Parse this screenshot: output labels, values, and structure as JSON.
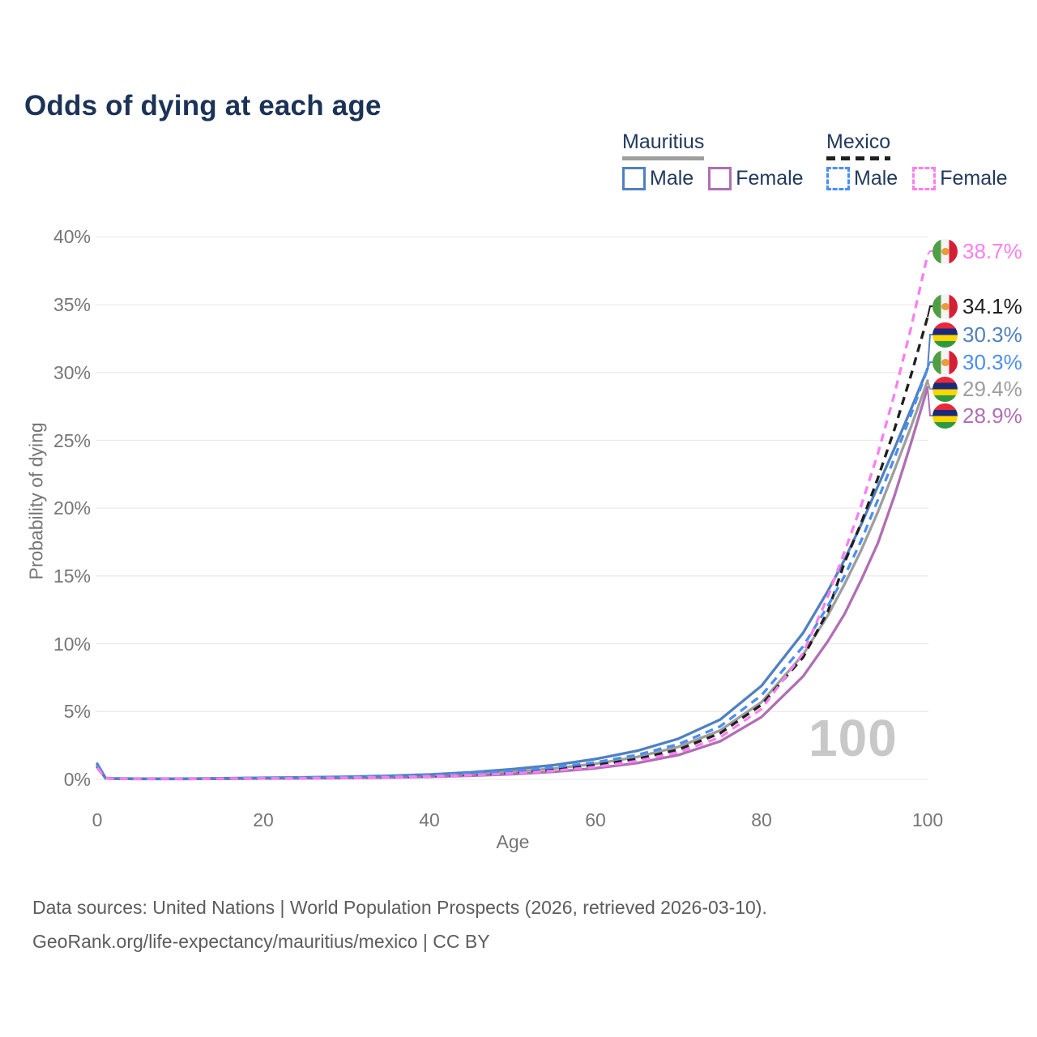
{
  "title": "Odds of dying at each age",
  "legend": {
    "groups": [
      {
        "name": "Mauritius",
        "line_style": "solid",
        "line_color": "#9e9e9e",
        "items": [
          {
            "label": "Male",
            "color": "#5080c0",
            "dashed": false
          },
          {
            "label": "Female",
            "color": "#b06eb4",
            "dashed": false
          }
        ]
      },
      {
        "name": "Mexico",
        "line_style": "dashed",
        "line_color": "#1f1f1f",
        "items": [
          {
            "label": "Male",
            "color": "#4b8ef2",
            "dashed": true
          },
          {
            "label": "Female",
            "color": "#fa7ff0",
            "dashed": true
          }
        ]
      }
    ]
  },
  "y_axis": {
    "label": "Probability of dying",
    "ticks": [
      "40%",
      "35%",
      "30%",
      "25%",
      "20%",
      "15%",
      "10%",
      "5%",
      "0%"
    ]
  },
  "x_axis": {
    "label": "Age",
    "ticks": [
      "0",
      "20",
      "40",
      "60",
      "80",
      "100"
    ]
  },
  "watermark": "100",
  "end_labels": [
    {
      "value": "38.7%",
      "flag": "mexico",
      "series": "mexico-female",
      "color": "#fa7ff0"
    },
    {
      "value": "34.1%",
      "flag": "mexico",
      "series": "mexico-all",
      "color": "#1f1f1f"
    },
    {
      "value": "30.3%",
      "flag": "mauritius",
      "series": "mauritius-male",
      "color": "#5080c0"
    },
    {
      "value": "30.3%",
      "flag": "mexico",
      "series": "mexico-male",
      "color": "#4b8ef2"
    },
    {
      "value": "29.4%",
      "flag": "mauritius",
      "series": "mauritius-all",
      "color": "#9e9e9e"
    },
    {
      "value": "28.9%",
      "flag": "mauritius",
      "series": "mauritius-female",
      "color": "#b06eb4"
    }
  ],
  "footer": {
    "line1": "Data sources: United Nations | World Population Prospects (2026, retrieved 2026-03-10).",
    "line2": "GeoRank.org/life-expectancy/mauritius/mexico | CC BY"
  },
  "chart_data": {
    "type": "line",
    "title": "Odds of dying at each age",
    "xlabel": "Age",
    "ylabel": "Probability of dying",
    "xlim": [
      0,
      100
    ],
    "ylim_percent": [
      0,
      40
    ],
    "x_ticks": [
      0,
      20,
      40,
      60,
      80,
      100
    ],
    "y_ticks_percent": [
      0,
      5,
      10,
      15,
      20,
      25,
      30,
      35,
      40
    ],
    "grid": "horizontal",
    "legend_position": "top-right",
    "x": [
      0,
      1,
      2,
      5,
      10,
      15,
      20,
      25,
      30,
      35,
      40,
      45,
      50,
      55,
      60,
      65,
      70,
      75,
      80,
      85,
      88,
      90,
      92,
      94,
      96,
      98,
      100
    ],
    "series": [
      {
        "id": "mauritius-all",
        "name": "Mauritius (both sexes)",
        "color": "#9e9e9e",
        "dashed": false,
        "end_value_percent": 29.4,
        "values": [
          1.05,
          0.09,
          0.06,
          0.04,
          0.04,
          0.06,
          0.09,
          0.12,
          0.15,
          0.2,
          0.28,
          0.4,
          0.56,
          0.8,
          1.15,
          1.65,
          2.4,
          3.6,
          5.7,
          9.2,
          12.1,
          14.4,
          16.9,
          19.7,
          22.8,
          26.0,
          29.4
        ]
      },
      {
        "id": "mauritius-female",
        "name": "Mauritius Female",
        "color": "#b06eb4",
        "dashed": false,
        "end_value_percent": 28.9,
        "values": [
          0.9,
          0.08,
          0.05,
          0.03,
          0.03,
          0.04,
          0.06,
          0.08,
          0.1,
          0.14,
          0.19,
          0.27,
          0.38,
          0.56,
          0.82,
          1.2,
          1.8,
          2.8,
          4.6,
          7.6,
          10.2,
          12.2,
          14.7,
          17.4,
          20.9,
          24.8,
          28.9
        ]
      },
      {
        "id": "mauritius-male",
        "name": "Mauritius Male",
        "color": "#5080c0",
        "dashed": false,
        "end_value_percent": 30.3,
        "values": [
          1.15,
          0.1,
          0.07,
          0.05,
          0.05,
          0.08,
          0.12,
          0.15,
          0.19,
          0.26,
          0.36,
          0.52,
          0.75,
          1.05,
          1.5,
          2.1,
          3.0,
          4.4,
          6.9,
          10.8,
          13.9,
          16.2,
          18.8,
          21.6,
          24.4,
          27.3,
          30.3
        ]
      },
      {
        "id": "mexico-all",
        "name": "Mexico (both sexes)",
        "color": "#1f1f1f",
        "dashed": true,
        "end_value_percent": 34.1,
        "values": [
          0.95,
          0.08,
          0.05,
          0.04,
          0.04,
          0.05,
          0.08,
          0.11,
          0.14,
          0.18,
          0.25,
          0.36,
          0.51,
          0.73,
          1.05,
          1.5,
          2.2,
          3.4,
          5.5,
          9.0,
          12.4,
          16.0,
          18.9,
          22.2,
          25.8,
          29.8,
          34.1
        ]
      },
      {
        "id": "mexico-male",
        "name": "Mexico Male",
        "color": "#4b8ef2",
        "dashed": true,
        "end_value_percent": 30.3,
        "values": [
          1.0,
          0.09,
          0.06,
          0.04,
          0.04,
          0.07,
          0.11,
          0.14,
          0.17,
          0.23,
          0.31,
          0.44,
          0.62,
          0.88,
          1.25,
          1.8,
          2.6,
          3.9,
          6.2,
          9.8,
          12.8,
          15.0,
          17.6,
          20.6,
          23.7,
          26.9,
          30.3
        ]
      },
      {
        "id": "mexico-female",
        "name": "Mexico Female",
        "color": "#fa7ff0",
        "dashed": true,
        "end_value_percent": 38.7,
        "values": [
          0.85,
          0.07,
          0.05,
          0.03,
          0.03,
          0.05,
          0.07,
          0.09,
          0.12,
          0.16,
          0.22,
          0.31,
          0.44,
          0.63,
          0.92,
          1.35,
          2.0,
          3.1,
          5.2,
          9.3,
          13.5,
          16.8,
          20.2,
          24.0,
          28.4,
          33.3,
          38.7
        ]
      }
    ]
  }
}
